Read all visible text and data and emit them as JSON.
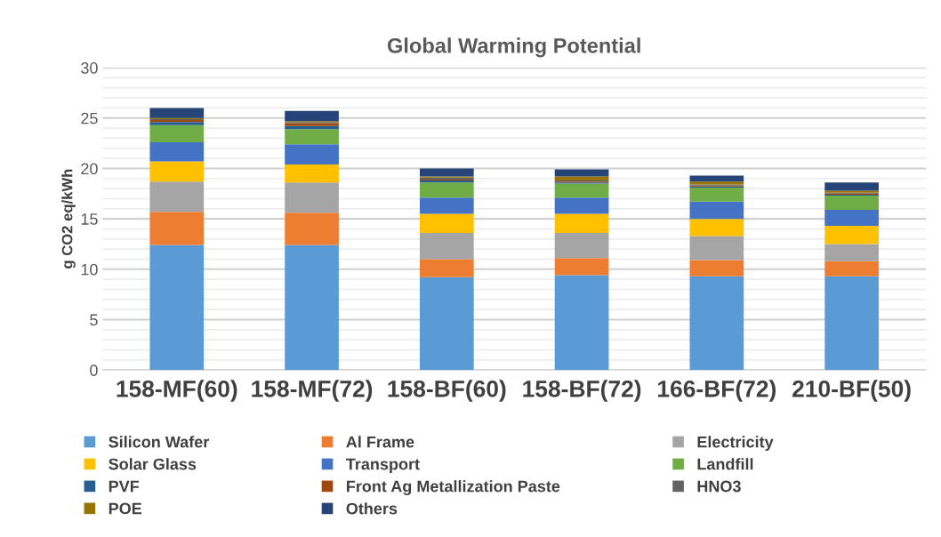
{
  "chart_data": {
    "type": "bar",
    "stacked": true,
    "title": "Global Warming Potential",
    "ylabel": "g CO2 eq/kWh",
    "categories": [
      "158-MF(60)",
      "158-MF(72)",
      "158-BF(60)",
      "158-BF(72)",
      "166-BF(72)",
      "210-BF(50)"
    ],
    "series": [
      {
        "name": "Silicon Wafer",
        "color": "#5b9bd5",
        "values": [
          12.4,
          12.4,
          9.2,
          9.4,
          9.3,
          9.3
        ]
      },
      {
        "name": "Al Frame",
        "color": "#ed7d31",
        "values": [
          3.3,
          3.2,
          1.8,
          1.7,
          1.6,
          1.5
        ]
      },
      {
        "name": "Electricity",
        "color": "#a5a5a5",
        "values": [
          3.0,
          3.0,
          2.6,
          2.5,
          2.4,
          1.7
        ]
      },
      {
        "name": "Solar Glass",
        "color": "#ffc000",
        "values": [
          2.0,
          1.8,
          1.9,
          1.9,
          1.7,
          1.8
        ]
      },
      {
        "name": "Transport",
        "color": "#4472c4",
        "values": [
          1.9,
          2.0,
          1.6,
          1.6,
          1.7,
          1.6
        ]
      },
      {
        "name": "Landfill",
        "color": "#70ad47",
        "values": [
          1.7,
          1.5,
          1.5,
          1.4,
          1.4,
          1.4
        ]
      },
      {
        "name": "PVF",
        "color": "#255e91",
        "values": [
          0.3,
          0.3,
          0.2,
          0.1,
          0.1,
          0.1
        ]
      },
      {
        "name": "Front Ag Metallization Paste",
        "color": "#9e480e",
        "values": [
          0.2,
          0.3,
          0.1,
          0.1,
          0.1,
          0.1
        ]
      },
      {
        "name": "HNO3",
        "color": "#636363",
        "values": [
          0.1,
          0.1,
          0.2,
          0.1,
          0.1,
          0.1
        ]
      },
      {
        "name": "POE",
        "color": "#997300",
        "values": [
          0.1,
          0.1,
          0.1,
          0.4,
          0.3,
          0.2
        ]
      },
      {
        "name": "Others",
        "color": "#264478",
        "values": [
          1.0,
          1.0,
          0.8,
          0.7,
          0.6,
          0.8
        ]
      }
    ],
    "ylim": [
      0,
      30
    ],
    "yticks": [
      0,
      {
        "value": 1,
        "label": null
      },
      {
        "value": 2,
        "label": null
      },
      {
        "value": 3,
        "label": null
      },
      {
        "value": 4,
        "label": null
      },
      5,
      {
        "value": 6,
        "label": null
      },
      {
        "value": 7,
        "label": null
      },
      {
        "value": 8,
        "label": null
      },
      {
        "value": 9,
        "label": null
      },
      10,
      {
        "value": 11,
        "label": null
      },
      {
        "value": 12,
        "label": null
      },
      {
        "value": 13,
        "label": null
      },
      {
        "value": 14,
        "label": null
      },
      15,
      {
        "value": 16,
        "label": null
      },
      {
        "value": 17,
        "label": null
      },
      {
        "value": 18,
        "label": null
      },
      {
        "value": 19,
        "label": null
      },
      20,
      {
        "value": 21,
        "label": null
      },
      {
        "value": 22,
        "label": null
      },
      {
        "value": 23,
        "label": null
      },
      {
        "value": 24,
        "label": null
      },
      25,
      {
        "value": 26,
        "label": null
      },
      {
        "value": 27,
        "label": null
      },
      {
        "value": 28,
        "label": null
      },
      {
        "value": 29,
        "label": null
      },
      30
    ],
    "grid": "y",
    "legend": "bottom"
  }
}
